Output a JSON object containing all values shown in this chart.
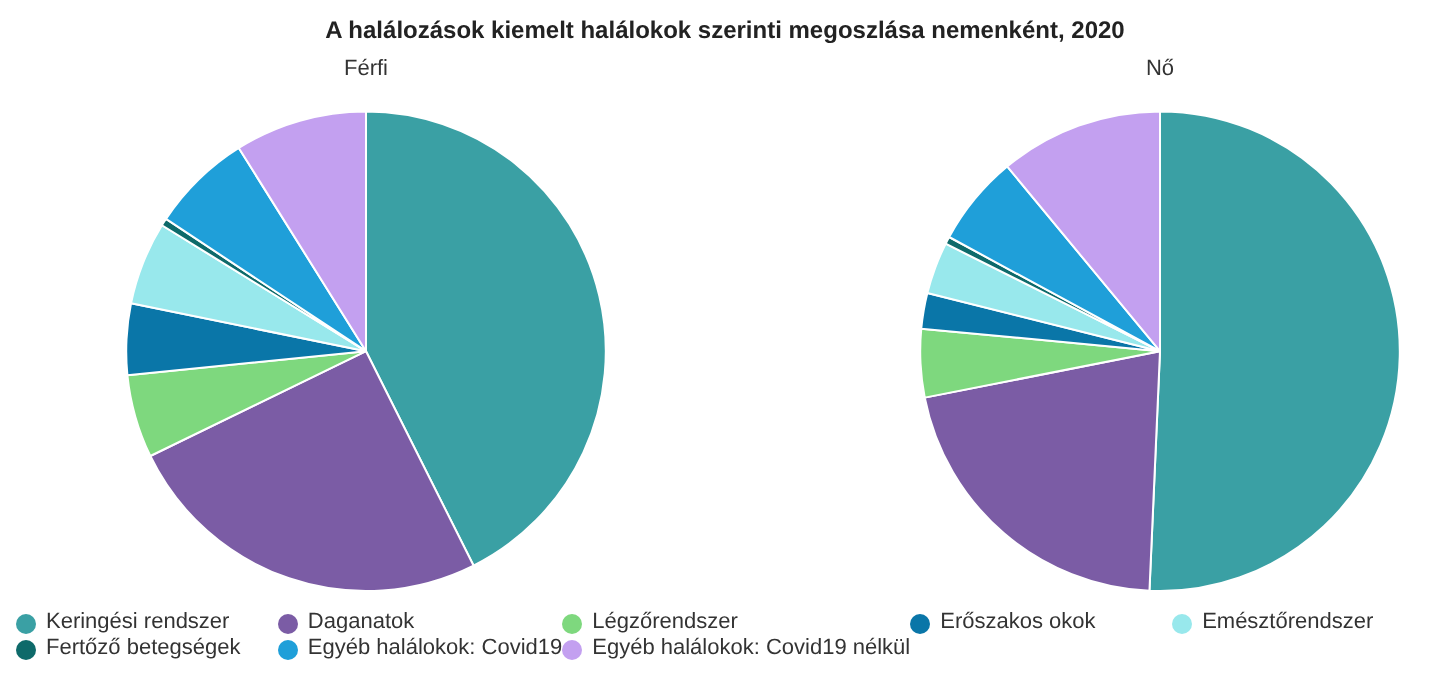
{
  "chart_data": {
    "type": "pie",
    "title": "A halálozások kiemelt halálokok szerinti megoszlása nemenként, 2020",
    "legend": "bottom",
    "categories": [
      "Keringési rendszer",
      "Daganatok",
      "Légzőrendszer",
      "Erőszakos okok",
      "Emésztőrendszer",
      "Fertőző betegségek",
      "Egyéb halálokok: Covid19",
      "Egyéb halálokok: Covid19 nélkül"
    ],
    "colors": [
      "#3aa0a4",
      "#7b5ca5",
      "#7ed87e",
      "#0a76a8",
      "#98e8ec",
      "#0e6a6a",
      "#1f9fd9",
      "#c3a0f0"
    ],
    "series": [
      {
        "name": "Férfi",
        "values": [
          42.6,
          25.2,
          5.6,
          4.8,
          5.6,
          0.5,
          6.8,
          8.9
        ]
      },
      {
        "name": "Nő",
        "values": [
          50.7,
          21.2,
          4.6,
          2.4,
          3.5,
          0.5,
          6.1,
          11.0
        ]
      }
    ]
  }
}
